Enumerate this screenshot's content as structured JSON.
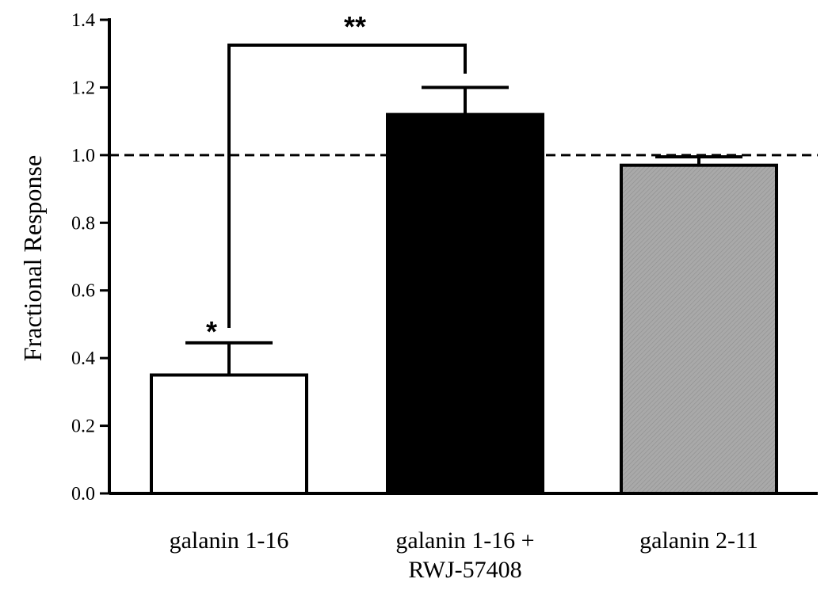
{
  "chart_data": {
    "type": "bar",
    "categories": [
      [
        "galanin 1-16"
      ],
      [
        "galanin 1-16 +",
        "RWJ-57408"
      ],
      [
        "galanin 2-11"
      ]
    ],
    "values": [
      0.35,
      1.12,
      0.97
    ],
    "errors": [
      0.095,
      0.08,
      0.025
    ],
    "fills": [
      "#ffffff",
      "#000000",
      "#a9a9a9"
    ],
    "ylabel": "Fractional Response",
    "xlabel": "",
    "ylim": [
      0,
      1.4
    ],
    "yticks": [
      "0.0",
      "0.2",
      "0.4",
      "0.6",
      "0.8",
      "1.0",
      "1.2",
      "1.4"
    ],
    "reference_line": 1.0,
    "grid": false,
    "significance": {
      "single_mark": "*",
      "bracket_mark": "**",
      "bracket_between": [
        0,
        1
      ]
    }
  }
}
